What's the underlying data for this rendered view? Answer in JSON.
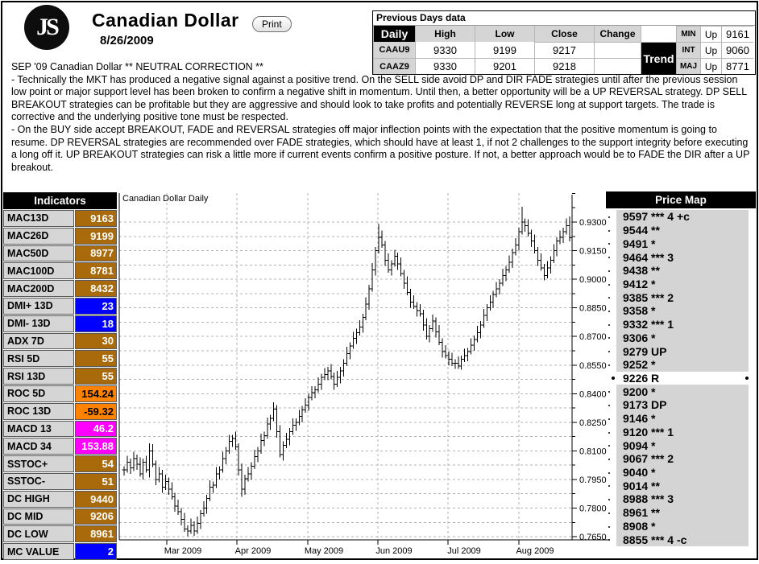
{
  "header": {
    "logo_text": "JS",
    "title": "Canadian Dollar",
    "date": "8/26/2009",
    "print_label": "Print"
  },
  "prev_days": {
    "title": "Previous Days data",
    "col_headers": [
      "Daily",
      "High",
      "Low",
      "Close",
      "Change"
    ],
    "rows": [
      {
        "symbol": "CAAU9",
        "high": "9330",
        "low": "9199",
        "close": "9217",
        "change": ""
      },
      {
        "symbol": "CAAZ9",
        "high": "9330",
        "low": "9201",
        "close": "9218",
        "change": ""
      }
    ],
    "trend_label": "Trend",
    "trend_rows": [
      {
        "label": "MIN",
        "dir": "Up",
        "value": "9161"
      },
      {
        "label": "INT",
        "dir": "Up",
        "value": "9060"
      },
      {
        "label": "MAJ",
        "dir": "Up",
        "value": "8771"
      }
    ]
  },
  "commentary": {
    "heading": "SEP '09 Canadian Dollar ** NEUTRAL CORRECTION **",
    "p1": "- Technically the MKT has produced a negative signal against a positive trend. On the SELL side avoid DP and DIR FADE strategies until after the previous session low point or major support level has been broken to confirm a negative shift in momentum. Until then, a better opportunity will be a UP REVERSAL strategy. DP SELL BREAKOUT strategies can be profitable but they are aggressive and should look to take profits and potentially REVERSE long at support targets. The trade is corrective and the underlying positive tone must be respected.",
    "p2": "- On the BUY side accept BREAKOUT, FADE and REVERSAL strategies off major inflection points with the expectation that the positive momentum is going to resume. DP REVERSAL strategies are recommended over FADE strategies, which should have at least 1, if not 2 challenges to the support integrity before executing a long off it. UP BREAKOUT strategies can risk a little more if current events confirm a positive posture. If not, a better approach would be to FADE the DIR after a UP breakout."
  },
  "indicators": {
    "title": "Indicators",
    "rows": [
      {
        "label": "MAC13D",
        "value": "9163",
        "style": "gold"
      },
      {
        "label": "MAC26D",
        "value": "9199",
        "style": "gold"
      },
      {
        "label": "MAC50D",
        "value": "8977",
        "style": "gold"
      },
      {
        "label": "MAC100D",
        "value": "8781",
        "style": "gold"
      },
      {
        "label": "MAC200D",
        "value": "8432",
        "style": "gold"
      },
      {
        "label": "DMI+ 13D",
        "value": "23",
        "style": "blue"
      },
      {
        "label": "DMI- 13D",
        "value": "18",
        "style": "blue"
      },
      {
        "label": "ADX 7D",
        "value": "30",
        "style": "gold"
      },
      {
        "label": "RSI 5D",
        "value": "55",
        "style": "gold"
      },
      {
        "label": "RSI 13D",
        "value": "55",
        "style": "gold"
      },
      {
        "label": "ROC 5D",
        "value": "154.24",
        "style": "orange"
      },
      {
        "label": "ROC 13D",
        "value": "-59.32",
        "style": "orange"
      },
      {
        "label": "MACD 13",
        "value": "46.2",
        "style": "magenta"
      },
      {
        "label": "MACD 34",
        "value": "153.88",
        "style": "magenta"
      },
      {
        "label": "SSTOC+",
        "value": "54",
        "style": "gold"
      },
      {
        "label": "SSTOC-",
        "value": "51",
        "style": "gold"
      },
      {
        "label": "DC HIGH",
        "value": "9440",
        "style": "gold"
      },
      {
        "label": "DC MID",
        "value": "9206",
        "style": "gold"
      },
      {
        "label": "DC LOW",
        "value": "8961",
        "style": "gold"
      },
      {
        "label": "MC VALUE",
        "value": "2",
        "style": "blue"
      }
    ]
  },
  "price_map": {
    "title": "Price Map",
    "rows": [
      {
        "level": "9597 *** 4 +c"
      },
      {
        "level": "9544 **"
      },
      {
        "level": "9491 *"
      },
      {
        "level": "9464 *** 3"
      },
      {
        "level": "9438 **"
      },
      {
        "level": "9412 *"
      },
      {
        "level": "9385 *** 2"
      },
      {
        "level": "9358 *"
      },
      {
        "level": "9332 *** 1"
      },
      {
        "level": "9306 *"
      },
      {
        "level": "9279 UP"
      },
      {
        "level": "9252 *"
      },
      {
        "level": "9226 R",
        "highlight": true
      },
      {
        "level": "9200 *"
      },
      {
        "level": "9173 DP"
      },
      {
        "level": "9146 *"
      },
      {
        "level": "9120 *** 1"
      },
      {
        "level": "9094 *"
      },
      {
        "level": "9067 *** 2"
      },
      {
        "level": "9040 *"
      },
      {
        "level": "9014 **"
      },
      {
        "level": "8988 *** 3"
      },
      {
        "level": "8961 **"
      },
      {
        "level": "8908 *"
      },
      {
        "level": "8855 *** 4 -c"
      }
    ]
  },
  "chart_data": {
    "type": "ohlc-bar",
    "title": "Canadian Dollar Daily",
    "x_axis": {
      "labels": [
        "Mar 2009",
        "Apr 2009",
        "May 2009",
        "Jun 2009",
        "Jul 2009",
        "Aug 2009"
      ]
    },
    "y_axis": {
      "min": 0.765,
      "max": 0.945,
      "tick_step": 0.0075,
      "label_step": 0.015,
      "labels": [
        "0.9300",
        "0.9150",
        "0.9000",
        "0.8850",
        "0.8700",
        "0.8550",
        "0.8400",
        "0.8250",
        "0.8100",
        "0.7950",
        "0.7800",
        "0.7650"
      ]
    },
    "grid": true,
    "price_scale": 10000,
    "bars_hlc": [
      [
        8020,
        7970,
        8000
      ],
      [
        8075,
        7985,
        8040
      ],
      [
        8060,
        7980,
        8010
      ],
      [
        8095,
        7995,
        8060
      ],
      [
        8080,
        8000,
        8030
      ],
      [
        8065,
        7965,
        7980
      ],
      [
        8060,
        7950,
        8040
      ],
      [
        8075,
        7985,
        8000
      ],
      [
        8140,
        7960,
        8100
      ],
      [
        8135,
        8015,
        8030
      ],
      [
        8050,
        7920,
        7950
      ],
      [
        8015,
        7935,
        7980
      ],
      [
        8000,
        7880,
        7910
      ],
      [
        7975,
        7895,
        7940
      ],
      [
        7960,
        7870,
        7900
      ],
      [
        7935,
        7845,
        7860
      ],
      [
        7880,
        7780,
        7810
      ],
      [
        7845,
        7765,
        7780
      ],
      [
        7800,
        7710,
        7740
      ],
      [
        7775,
        7675,
        7690
      ],
      [
        7710,
        7653,
        7680
      ],
      [
        7745,
        7665,
        7710
      ],
      [
        7730,
        7655,
        7680
      ],
      [
        7755,
        7665,
        7720
      ],
      [
        7790,
        7690,
        7770
      ],
      [
        7835,
        7755,
        7800
      ],
      [
        7870,
        7770,
        7850
      ],
      [
        7945,
        7835,
        7910
      ],
      [
        7940,
        7880,
        7920
      ],
      [
        8015,
        7905,
        7980
      ],
      [
        8020,
        7950,
        8000
      ],
      [
        8095,
        7985,
        8060
      ],
      [
        8120,
        8030,
        8100
      ],
      [
        8185,
        8085,
        8150
      ],
      [
        8185,
        8120,
        8165
      ],
      [
        8200,
        8105,
        8120
      ],
      [
        8140,
        7970,
        8000
      ],
      [
        8035,
        7860,
        7900
      ],
      [
        7975,
        7870,
        7955
      ],
      [
        8015,
        7940,
        7980
      ],
      [
        8040,
        7950,
        8020
      ],
      [
        8105,
        8005,
        8070
      ],
      [
        8120,
        8040,
        8100
      ],
      [
        8190,
        8085,
        8155
      ],
      [
        8200,
        8125,
        8180
      ],
      [
        8275,
        8165,
        8240
      ],
      [
        8290,
        8210,
        8270
      ],
      [
        8355,
        8255,
        8320
      ],
      [
        8340,
        8170,
        8200
      ],
      [
        8235,
        8065,
        8080
      ],
      [
        8150,
        8050,
        8130
      ],
      [
        8195,
        8115,
        8160
      ],
      [
        8220,
        8130,
        8200
      ],
      [
        8270,
        8185,
        8235
      ],
      [
        8270,
        8205,
        8250
      ],
      [
        8315,
        8235,
        8280
      ],
      [
        8335,
        8250,
        8315
      ],
      [
        8375,
        8300,
        8340
      ],
      [
        8400,
        8310,
        8380
      ],
      [
        8440,
        8365,
        8405
      ],
      [
        8440,
        8375,
        8420
      ],
      [
        8485,
        8405,
        8450
      ],
      [
        8505,
        8420,
        8485
      ],
      [
        8535,
        8470,
        8500
      ],
      [
        8540,
        8470,
        8520
      ],
      [
        8555,
        8475,
        8490
      ],
      [
        8510,
        8420,
        8450
      ],
      [
        8520,
        8435,
        8485
      ],
      [
        8540,
        8455,
        8520
      ],
      [
        8580,
        8490,
        8560
      ],
      [
        8645,
        8545,
        8610
      ],
      [
        8670,
        8580,
        8650
      ],
      [
        8725,
        8635,
        8690
      ],
      [
        8740,
        8660,
        8720
      ],
      [
        8785,
        8705,
        8750
      ],
      [
        8820,
        8720,
        8800
      ],
      [
        8905,
        8785,
        8870
      ],
      [
        8970,
        8840,
        8950
      ],
      [
        9085,
        8935,
        9050
      ],
      [
        9170,
        9020,
        9150
      ],
      [
        9290,
        9135,
        9220
      ],
      [
        9255,
        9165,
        9180
      ],
      [
        9200,
        9070,
        9100
      ],
      [
        9135,
        9035,
        9050
      ],
      [
        9100,
        9020,
        9080
      ],
      [
        9155,
        9065,
        9120
      ],
      [
        9140,
        9050,
        9080
      ],
      [
        9115,
        9015,
        9030
      ],
      [
        9050,
        8950,
        8980
      ],
      [
        9015,
        8915,
        8930
      ],
      [
        8950,
        8850,
        8880
      ],
      [
        8915,
        8845,
        8860
      ],
      [
        8880,
        8805,
        8835
      ],
      [
        8870,
        8805,
        8820
      ],
      [
        8840,
        8730,
        8760
      ],
      [
        8795,
        8685,
        8700
      ],
      [
        8760,
        8670,
        8740
      ],
      [
        8815,
        8725,
        8780
      ],
      [
        8800,
        8695,
        8725
      ],
      [
        8760,
        8655,
        8670
      ],
      [
        8690,
        8590,
        8620
      ],
      [
        8655,
        8585,
        8600
      ],
      [
        8620,
        8550,
        8580
      ],
      [
        8615,
        8545,
        8560
      ],
      [
        8580,
        8530,
        8560
      ],
      [
        8595,
        8530,
        8545
      ],
      [
        8600,
        8525,
        8580
      ],
      [
        8635,
        8565,
        8600
      ],
      [
        8640,
        8570,
        8620
      ],
      [
        8690,
        8605,
        8655
      ],
      [
        8705,
        8625,
        8685
      ],
      [
        8755,
        8670,
        8720
      ],
      [
        8780,
        8690,
        8760
      ],
      [
        8845,
        8745,
        8810
      ],
      [
        8870,
        8780,
        8850
      ],
      [
        8915,
        8835,
        8880
      ],
      [
        8940,
        8850,
        8920
      ],
      [
        8985,
        8905,
        8950
      ],
      [
        9000,
        8920,
        8980
      ],
      [
        9055,
        8965,
        9020
      ],
      [
        9070,
        8990,
        9050
      ],
      [
        9125,
        9035,
        9090
      ],
      [
        9160,
        9060,
        9140
      ],
      [
        9215,
        9125,
        9180
      ],
      [
        9270,
        9150,
        9250
      ],
      [
        9380,
        9235,
        9300
      ],
      [
        9320,
        9250,
        9280
      ],
      [
        9315,
        9225,
        9240
      ],
      [
        9260,
        9170,
        9200
      ],
      [
        9235,
        9135,
        9150
      ],
      [
        9170,
        9070,
        9100
      ],
      [
        9135,
        9045,
        9060
      ],
      [
        9080,
        8995,
        9020
      ],
      [
        9095,
        9005,
        9060
      ],
      [
        9120,
        9030,
        9100
      ],
      [
        9185,
        9085,
        9150
      ],
      [
        9220,
        9120,
        9200
      ],
      [
        9255,
        9185,
        9220
      ],
      [
        9270,
        9190,
        9250
      ],
      [
        9320,
        9235,
        9280
      ],
      [
        9330,
        9199,
        9217
      ]
    ]
  }
}
